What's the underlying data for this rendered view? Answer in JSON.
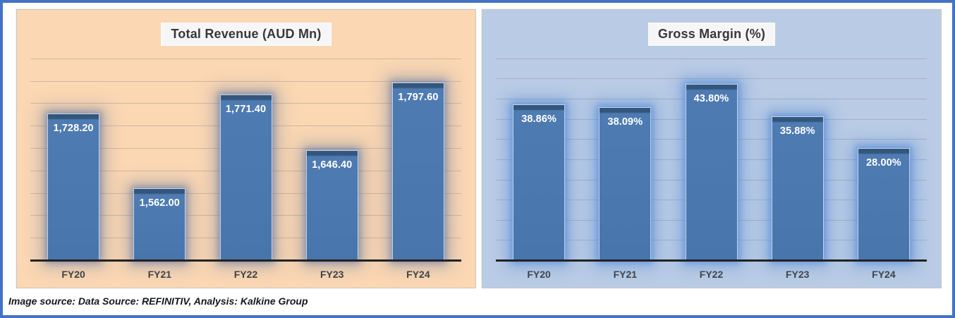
{
  "frame": {
    "border_color": "#4472C4",
    "background": "#FFFFFF"
  },
  "footer": {
    "note": "Image source: Data Source: REFINITIV, Analysis: Kalkine Group"
  },
  "chart_data": [
    {
      "type": "bar",
      "title": "Total Revenue (AUD Mn)",
      "categories": [
        "FY20",
        "FY21",
        "FY22",
        "FY23",
        "FY24"
      ],
      "values": [
        1728.2,
        1562.0,
        1771.4,
        1646.4,
        1797.6
      ],
      "data_labels": [
        "1,728.20",
        "1,562.00",
        "1,771.40",
        "1,646.40",
        "1,797.60"
      ],
      "xlabel": "",
      "ylabel": "",
      "ylim": [
        1400,
        1850
      ],
      "grid_step": 50,
      "grid": true,
      "legend": false,
      "panel_bg": "#FBD7B3",
      "bar_fill": "#4E7BB2",
      "bar_fill_bottom": "#4876AC",
      "bar_bevel": "#33567D",
      "glow_inner": "rgba(96,120,164,0.60)",
      "glow_outer": "rgba(96,120,164,0.35)"
    },
    {
      "type": "bar",
      "title": "Gross Margin (%)",
      "categories": [
        "FY20",
        "FY21",
        "FY22",
        "FY23",
        "FY24"
      ],
      "values": [
        38.86,
        38.09,
        43.8,
        35.88,
        28.0
      ],
      "data_labels": [
        "38.86%",
        "38.09%",
        "43.80%",
        "35.88%",
        "28.00%"
      ],
      "xlabel": "",
      "ylabel": "",
      "ylim": [
        0,
        50
      ],
      "grid_step": 5,
      "grid": true,
      "legend": false,
      "panel_bg": "#BACCE5",
      "bar_fill": "#4E7BB2",
      "bar_fill_bottom": "#4876AC",
      "bar_bevel": "#33567D",
      "glow_inner": "rgba(88,140,214,0.70)",
      "glow_outer": "rgba(88,140,214,0.40)"
    }
  ]
}
